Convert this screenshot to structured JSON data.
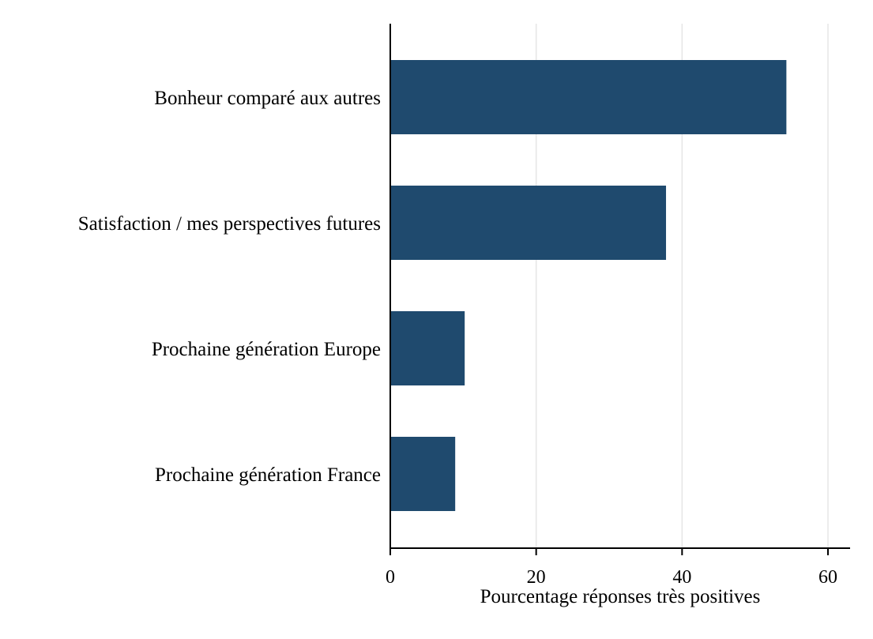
{
  "chart_data": {
    "type": "bar",
    "orientation": "horizontal",
    "categories": [
      "Bonheur comparé aux autres",
      "Satisfaction / mes perspectives futures",
      "Prochaine génération Europe",
      "Prochaine génération France"
    ],
    "values": [
      54.3,
      37.8,
      10.2,
      8.9
    ],
    "title": "",
    "xlabel": "Pourcentage réponses très positives",
    "ylabel": "",
    "xlim": [
      0,
      63
    ],
    "xticks": [
      0,
      20,
      40,
      60
    ],
    "xtick_labels": [
      "0",
      "20",
      "40",
      "60"
    ],
    "grid": "vertical",
    "legend": "none",
    "colors": {
      "bar": "#1f4a6e",
      "grid": "#e6e6e6",
      "axis": "#000000"
    }
  }
}
